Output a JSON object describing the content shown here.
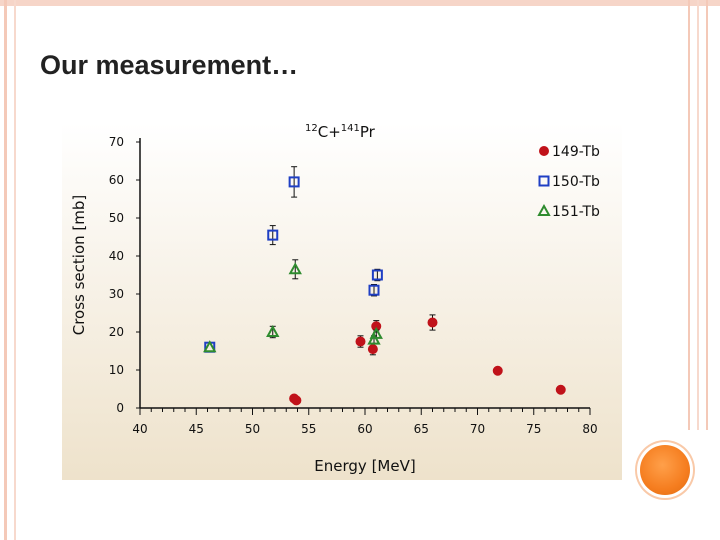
{
  "slide": {
    "title": "Our measurement…"
  },
  "colors": {
    "frame": "#f4c9b8",
    "accent_dot": "#f57d1f",
    "plot_bg_top": "#ffffff",
    "plot_bg_bottom": "#efe3cc"
  },
  "chart_data": {
    "type": "scatter",
    "title": "12C+141Pr",
    "title_parts": {
      "mass_a": "12",
      "elem_a": "C+",
      "mass_b": "141",
      "elem_b": "Pr"
    },
    "xlabel": "Energy [MeV]",
    "ylabel": "Cross section [mb]",
    "xlim": [
      40,
      80
    ],
    "ylim": [
      0,
      70
    ],
    "x_ticks": [
      40,
      45,
      50,
      55,
      60,
      65,
      70,
      75,
      80
    ],
    "y_ticks": [
      0,
      10,
      20,
      30,
      40,
      50,
      60,
      70
    ],
    "grid": false,
    "legend_position": "top-right",
    "series": [
      {
        "name": "149-Tb",
        "marker": "circle",
        "color": "#c0121a",
        "points": [
          {
            "x": 53.7,
            "y": 2.5,
            "err": 0
          },
          {
            "x": 53.9,
            "y": 2.0,
            "err": 0
          },
          {
            "x": 59.6,
            "y": 17.5,
            "err": 1.5
          },
          {
            "x": 60.7,
            "y": 15.5,
            "err": 1.5
          },
          {
            "x": 61.0,
            "y": 21.5,
            "err": 1.5
          },
          {
            "x": 66.0,
            "y": 22.5,
            "err": 2.0
          },
          {
            "x": 71.8,
            "y": 9.8,
            "err": 0
          },
          {
            "x": 77.4,
            "y": 4.8,
            "err": 0
          }
        ]
      },
      {
        "name": "150-Tb",
        "marker": "square",
        "color": "#1f3fc4",
        "points": [
          {
            "x": 46.2,
            "y": 16.0,
            "err": 0
          },
          {
            "x": 51.8,
            "y": 45.5,
            "err": 2.5
          },
          {
            "x": 53.7,
            "y": 59.5,
            "err": 4.0
          },
          {
            "x": 60.8,
            "y": 31.0,
            "err": 1.5
          },
          {
            "x": 61.1,
            "y": 35.0,
            "err": 1.5
          }
        ]
      },
      {
        "name": "151-Tb",
        "marker": "triangle",
        "color": "#2e8b2e",
        "points": [
          {
            "x": 46.2,
            "y": 16.0,
            "err": 0
          },
          {
            "x": 51.8,
            "y": 20.0,
            "err": 1.5
          },
          {
            "x": 53.8,
            "y": 36.5,
            "err": 2.5
          },
          {
            "x": 60.8,
            "y": 18.0,
            "err": 1.0
          },
          {
            "x": 61.0,
            "y": 19.5,
            "err": 1.0
          }
        ]
      }
    ]
  }
}
